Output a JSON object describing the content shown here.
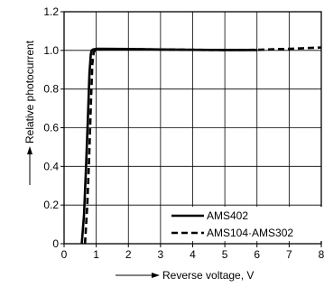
{
  "chart_data": {
    "type": "line",
    "title": "",
    "xlabel": "Reverse voltage, V",
    "ylabel": "Relative photocurrent",
    "xlim": [
      0,
      8
    ],
    "ylim": [
      0,
      1.2
    ],
    "x_ticks": [
      0,
      1,
      2,
      3,
      4,
      5,
      6,
      7,
      8
    ],
    "y_ticks": [
      0,
      0.2,
      0.4,
      0.6,
      0.8,
      1.0,
      1.2
    ],
    "x_tick_labels": [
      "0",
      "1",
      "2",
      "3",
      "4",
      "5",
      "6",
      "7",
      "8"
    ],
    "y_tick_labels": [
      "0",
      "0.2",
      "0.4",
      "0.6",
      "0.8",
      "1.0",
      "1.2"
    ],
    "grid": true,
    "legend_position": "bottom-right",
    "series": [
      {
        "name": "AMS402",
        "style": "solid",
        "color": "#000000",
        "x": [
          0.55,
          0.62,
          0.68,
          0.74,
          0.79,
          0.83,
          0.86,
          0.9,
          1.0,
          2.0,
          3.0,
          4.0,
          5.0,
          6.0
        ],
        "y": [
          0.0,
          0.15,
          0.38,
          0.65,
          0.88,
          0.98,
          1.0,
          1.005,
          1.008,
          1.007,
          1.005,
          1.003,
          1.002,
          1.002
        ]
      },
      {
        "name": "AMS104·AMS302",
        "style": "dashed",
        "color": "#000000",
        "x": [
          0.65,
          0.72,
          0.78,
          0.84,
          0.88,
          0.92,
          0.96,
          1.0,
          2.0,
          3.0,
          4.0,
          5.0,
          6.0,
          7.0,
          8.0
        ],
        "y": [
          0.0,
          0.2,
          0.45,
          0.75,
          0.93,
          0.99,
          1.0,
          1.005,
          1.006,
          1.005,
          1.003,
          1.002,
          1.003,
          1.008,
          1.015
        ]
      }
    ]
  }
}
